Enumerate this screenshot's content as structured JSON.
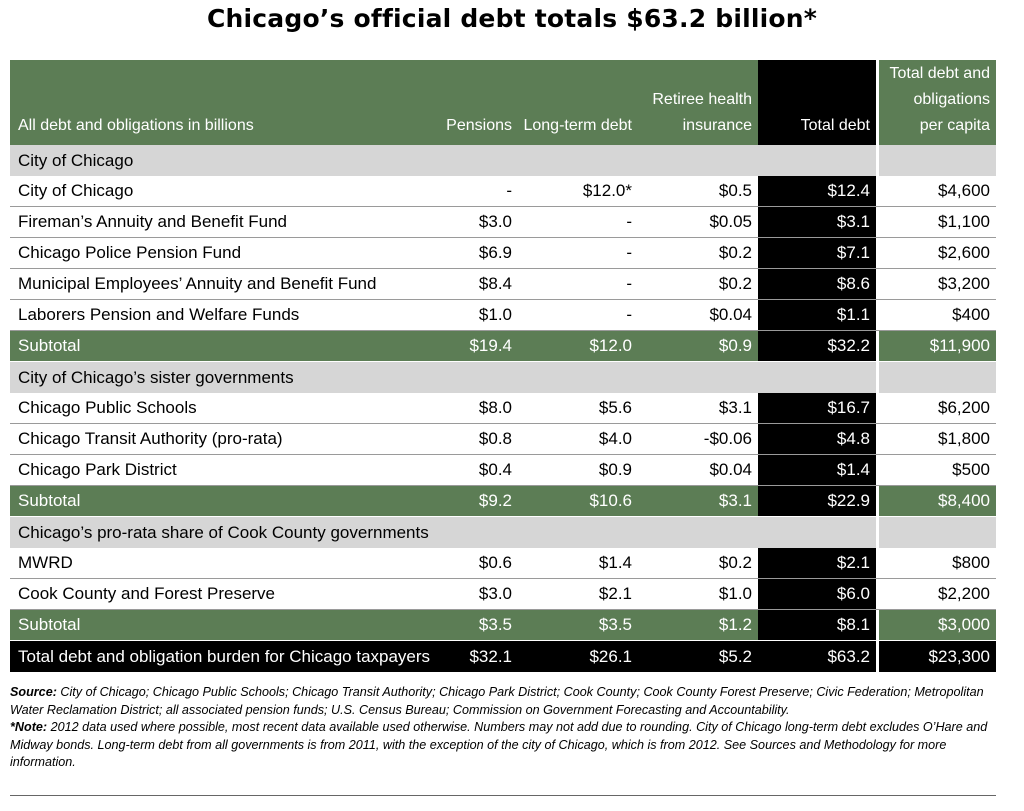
{
  "title": "Chicago’s official debt totals $63.2 billion*",
  "header": {
    "label": "All debt and obligations in billions",
    "pensions": "Pensions",
    "long_term": "Long-term debt",
    "retiree": "Retiree health\ninsurance",
    "total": "Total debt",
    "per_capita": "Total debt and\nobligations\nper capita"
  },
  "rows": [
    {
      "kind": "sec",
      "label": "City of Chicago",
      "p": "",
      "l": "",
      "r": "",
      "t": "",
      "pc": ""
    },
    {
      "kind": "data",
      "label": "City of Chicago",
      "p": "-",
      "l": "$12.0*",
      "r": "$0.5",
      "t": "$12.4",
      "pc": "$4,600"
    },
    {
      "kind": "data",
      "label": "Fireman’s Annuity and Benefit Fund",
      "p": "$3.0",
      "l": "-",
      "r": "$0.05",
      "t": "$3.1",
      "pc": "$1,100"
    },
    {
      "kind": "data",
      "label": "Chicago Police Pension Fund",
      "p": "$6.9",
      "l": "-",
      "r": "$0.2",
      "t": "$7.1",
      "pc": "$2,600"
    },
    {
      "kind": "data",
      "label": "Municipal Employees’ Annuity and Benefit Fund",
      "p": "$8.4",
      "l": "-",
      "r": "$0.2",
      "t": "$8.6",
      "pc": "$3,200"
    },
    {
      "kind": "data",
      "label": "Laborers Pension and Welfare Funds",
      "p": "$1.0",
      "l": "-",
      "r": "$0.04",
      "t": "$1.1",
      "pc": "$400"
    },
    {
      "kind": "sub",
      "label": "Subtotal",
      "p": "$19.4",
      "l": "$12.0",
      "r": "$0.9",
      "t": "$32.2",
      "pc": "$11,900"
    },
    {
      "kind": "sec",
      "label": "City of Chicago’s sister governments",
      "p": "",
      "l": "",
      "r": "",
      "t": "",
      "pc": ""
    },
    {
      "kind": "data",
      "label": "Chicago Public Schools",
      "p": "$8.0",
      "l": "$5.6",
      "r": "$3.1",
      "t": "$16.7",
      "pc": "$6,200"
    },
    {
      "kind": "data",
      "label": "Chicago Transit Authority (pro-rata)",
      "p": "$0.8",
      "l": "$4.0",
      "r": "-$0.06",
      "t": "$4.8",
      "pc": "$1,800"
    },
    {
      "kind": "data",
      "label": "Chicago Park District",
      "p": "$0.4",
      "l": "$0.9",
      "r": "$0.04",
      "t": "$1.4",
      "pc": "$500"
    },
    {
      "kind": "sub",
      "label": "Subtotal",
      "p": "$9.2",
      "l": "$10.6",
      "r": "$3.1",
      "t": "$22.9",
      "pc": "$8,400"
    },
    {
      "kind": "sec",
      "label": "Chicago’s pro-rata share of Cook County governments",
      "p": "",
      "l": "",
      "r": "",
      "t": "",
      "pc": ""
    },
    {
      "kind": "data",
      "label": "MWRD",
      "p": "$0.6",
      "l": "$1.4",
      "r": "$0.2",
      "t": "$2.1",
      "pc": "$800"
    },
    {
      "kind": "data",
      "label": "Cook County and Forest Preserve",
      "p": "$3.0",
      "l": "$2.1",
      "r": "$1.0",
      "t": "$6.0",
      "pc": "$2,200"
    },
    {
      "kind": "sub",
      "label": "Subtotal",
      "p": "$3.5",
      "l": "$3.5",
      "r": "$1.2",
      "t": "$8.1",
      "pc": "$3,000"
    },
    {
      "kind": "total",
      "label": "Total debt and obligation burden for Chicago taxpayers",
      "p": "$32.1",
      "l": "$26.1",
      "r": "$5.2",
      "t": "$63.2",
      "pc": "$23,300"
    }
  ],
  "notes": {
    "source_label": "Source:",
    "source_text": " City of Chicago; Chicago Public Schools; Chicago Transit Authority; Chicago Park District; Cook County; Cook County Forest Preserve; Civic Federation; Metropolitan Water Reclamation District; all associated pension funds; U.S. Census Bureau; Commission on Government Forecasting and Accountability.",
    "note_label": "*Note:",
    "note_text": " 2012 data used where possible, most recent data available used otherwise. Numbers may not add due to rounding. City of Chicago long-term debt excludes O’Hare and Midway bonds. Long-term debt from all governments is from 2011, with the exception of the city of Chicago, which is from 2012. See Sources and Methodology for more information."
  }
}
